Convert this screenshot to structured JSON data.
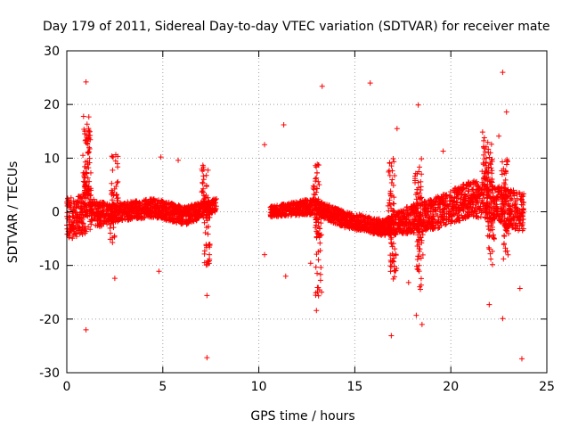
{
  "chart_data": {
    "type": "scatter",
    "title": "Day 179 of 2011, Sidereal Day-to-day VTEC variation (SDTVAR) for receiver mate",
    "xlabel": "GPS time / hours",
    "ylabel": "SDTVAR / TECUs",
    "xlim": [
      0,
      25
    ],
    "ylim": [
      -30,
      30
    ],
    "xticks": [
      0,
      5,
      10,
      15,
      20,
      25
    ],
    "yticks": [
      -30,
      -20,
      -10,
      0,
      10,
      20,
      30
    ],
    "grid": true,
    "marker": "+",
    "color": "#ff0000",
    "series": [
      {
        "name": "SDTVAR",
        "bands": [
          {
            "x0": 0.0,
            "x1": 0.6,
            "ylo0": -5,
            "ylo1": -5,
            "yhi0": 2.5,
            "yhi1": 3
          },
          {
            "x0": 0.6,
            "x1": 1.2,
            "ylo0": -5,
            "ylo1": -3.5,
            "yhi0": 3,
            "yhi1": 5
          },
          {
            "x0": 1.2,
            "x1": 2.3,
            "ylo0": -3.5,
            "ylo1": -2,
            "yhi0": 2.5,
            "yhi1": 1.5
          },
          {
            "x0": 2.3,
            "x1": 4.5,
            "ylo0": -2,
            "ylo1": -1,
            "yhi0": 1.5,
            "yhi1": 2.5
          },
          {
            "x0": 4.5,
            "x1": 6.2,
            "ylo0": -1,
            "ylo1": -2.5,
            "yhi0": 2.5,
            "yhi1": 1
          },
          {
            "x0": 6.2,
            "x1": 7.8,
            "ylo0": -2.5,
            "ylo1": 0,
            "yhi0": 1,
            "yhi1": 2.5
          },
          {
            "x0": 10.6,
            "x1": 12.8,
            "ylo0": -1,
            "ylo1": -0.5,
            "yhi0": 1,
            "yhi1": 2.5
          },
          {
            "x0": 12.8,
            "x1": 14.5,
            "ylo0": -0.5,
            "ylo1": -3,
            "yhi0": 2.5,
            "yhi1": 0
          },
          {
            "x0": 14.5,
            "x1": 16.5,
            "ylo0": -3,
            "ylo1": -4.5,
            "yhi0": 0,
            "yhi1": -1.5
          },
          {
            "x0": 16.5,
            "x1": 18.0,
            "ylo0": -4.5,
            "ylo1": -4,
            "yhi0": -1.5,
            "yhi1": 1.5
          },
          {
            "x0": 18.0,
            "x1": 19.5,
            "ylo0": -4,
            "ylo1": -3,
            "yhi0": 1.5,
            "yhi1": 3
          },
          {
            "x0": 19.5,
            "x1": 21.0,
            "ylo0": -3,
            "ylo1": -1,
            "yhi0": 3,
            "yhi1": 6
          },
          {
            "x0": 21.0,
            "x1": 22.3,
            "ylo0": -1,
            "ylo1": -1.5,
            "yhi0": 6,
            "yhi1": 5
          },
          {
            "x0": 22.3,
            "x1": 23.8,
            "ylo0": -1.5,
            "ylo1": -4,
            "yhi0": 5,
            "yhi1": 3.5
          }
        ],
        "spikes": [
          {
            "x": 1.0,
            "y0": 3,
            "y1": 18
          },
          {
            "x": 1.1,
            "y0": 3,
            "y1": 16
          },
          {
            "x": 2.5,
            "y0": 2,
            "y1": 11
          },
          {
            "x": 2.4,
            "y0": -1,
            "y1": -6
          },
          {
            "x": 7.2,
            "y0": 2,
            "y1": 9
          },
          {
            "x": 7.3,
            "y0": -1,
            "y1": -10
          },
          {
            "x": 13.0,
            "y0": 2,
            "y1": 9
          },
          {
            "x": 13.1,
            "y0": -1,
            "y1": -16
          },
          {
            "x": 16.9,
            "y0": 0,
            "y1": 10
          },
          {
            "x": 17.0,
            "y0": -2,
            "y1": -13
          },
          {
            "x": 18.3,
            "y0": 2,
            "y1": 10
          },
          {
            "x": 18.4,
            "y0": -3,
            "y1": -15
          },
          {
            "x": 21.8,
            "y0": 6,
            "y1": 15
          },
          {
            "x": 22.0,
            "y0": 5,
            "y1": 14
          },
          {
            "x": 22.8,
            "y0": 4,
            "y1": 10
          },
          {
            "x": 22.1,
            "y0": -1,
            "y1": -10
          },
          {
            "x": 22.9,
            "y0": -2,
            "y1": -9
          }
        ],
        "points": [
          [
            1.0,
            24.2
          ],
          [
            13.3,
            23.4
          ],
          [
            15.8,
            24.0
          ],
          [
            22.7,
            26.0
          ],
          [
            18.3,
            19.9
          ],
          [
            11.3,
            16.2
          ],
          [
            10.3,
            12.5
          ],
          [
            17.2,
            15.5
          ],
          [
            22.9,
            18.6
          ],
          [
            22.5,
            14.1
          ],
          [
            19.6,
            11.3
          ],
          [
            5.8,
            9.6
          ],
          [
            4.9,
            10.2
          ],
          [
            1.0,
            -22.0
          ],
          [
            7.3,
            -27.2
          ],
          [
            23.7,
            -27.4
          ],
          [
            13.0,
            -18.4
          ],
          [
            16.9,
            -23.1
          ],
          [
            18.2,
            -19.3
          ],
          [
            22.7,
            -19.9
          ],
          [
            22.0,
            -17.3
          ],
          [
            23.6,
            -14.3
          ],
          [
            7.3,
            -15.6
          ],
          [
            2.5,
            -12.4
          ],
          [
            4.8,
            -11.1
          ],
          [
            11.4,
            -12.0
          ],
          [
            17.8,
            -13.2
          ],
          [
            10.3,
            -8.0
          ],
          [
            12.7,
            -9.6
          ],
          [
            18.5,
            -21.0
          ]
        ]
      }
    ]
  }
}
